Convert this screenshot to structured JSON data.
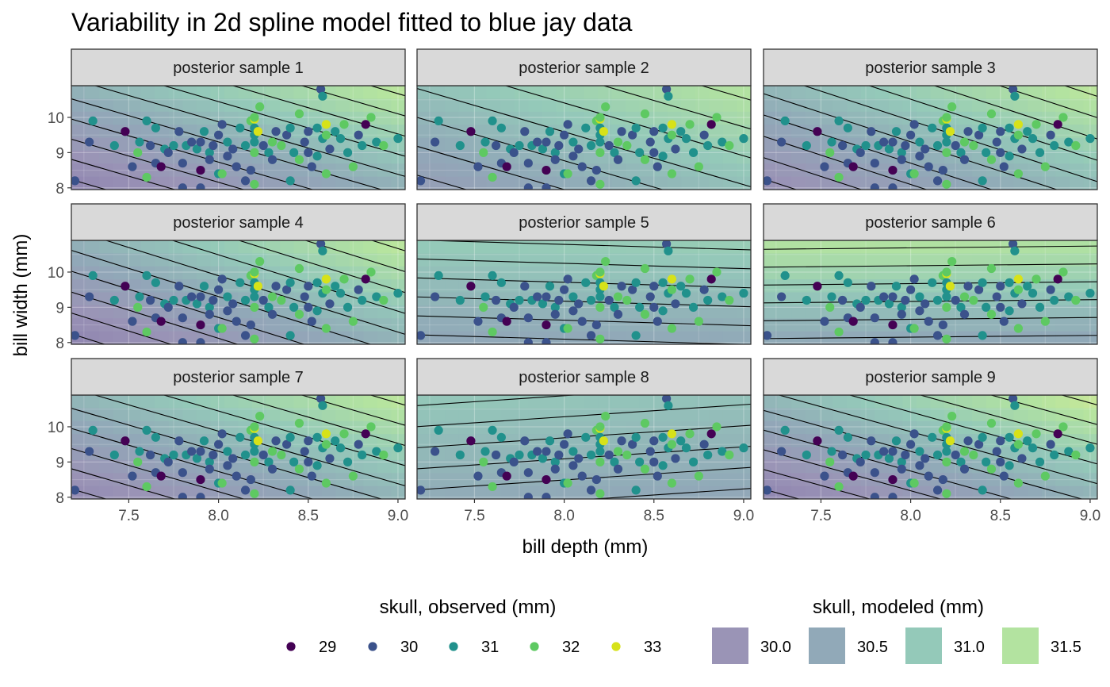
{
  "chart_data": {
    "type": "scatter",
    "title": "Variability in 2d spline model fitted to blue jay data",
    "xlabel": "bill depth (mm)",
    "ylabel": "bill width (mm)",
    "xlim": [
      7.18,
      9.04
    ],
    "ylim": [
      7.95,
      10.9
    ],
    "x_ticks": [
      "7.5",
      "8.0",
      "8.5",
      "9.0"
    ],
    "y_ticks": [
      "8",
      "9",
      "10"
    ],
    "facets": [
      "posterior sample 1",
      "posterior sample 2",
      "posterior sample 3",
      "posterior sample 4",
      "posterior sample 5",
      "posterior sample 6",
      "posterior sample 7",
      "posterior sample 8",
      "posterior sample 9"
    ],
    "facet_surfaces": [
      {
        "b": 0.82,
        "c": 0.55,
        "cmin": 29.9,
        "cmax": 31.7
      },
      {
        "b": 0.45,
        "c": 0.3,
        "cmin": 30.4,
        "cmax": 31.6
      },
      {
        "b": 0.75,
        "c": 0.45,
        "cmin": 30.1,
        "cmax": 31.7
      },
      {
        "b": 0.8,
        "c": 0.5,
        "cmin": 29.9,
        "cmax": 31.7
      },
      {
        "b": 0.06,
        "c": 0.4,
        "cmin": 30.6,
        "cmax": 31.2
      },
      {
        "b": -0.03,
        "c": 0.6,
        "cmin": 30.6,
        "cmax": 31.6
      },
      {
        "b": 0.82,
        "c": 0.55,
        "cmin": 30.0,
        "cmax": 31.7
      },
      {
        "b": -0.12,
        "c": 0.35,
        "cmin": 30.6,
        "cmax": 31.1
      },
      {
        "b": 0.78,
        "c": 0.55,
        "cmin": 29.9,
        "cmax": 31.8
      }
    ],
    "observed_points": [
      [
        7.2,
        8.2,
        30
      ],
      [
        7.28,
        9.3,
        30
      ],
      [
        7.3,
        9.9,
        31
      ],
      [
        7.42,
        9.2,
        31
      ],
      [
        7.48,
        9.6,
        29
      ],
      [
        7.52,
        8.6,
        30
      ],
      [
        7.55,
        9.0,
        32
      ],
      [
        7.56,
        9.3,
        31
      ],
      [
        7.6,
        8.3,
        32
      ],
      [
        7.6,
        9.9,
        31
      ],
      [
        7.62,
        9.2,
        30
      ],
      [
        7.65,
        8.7,
        30
      ],
      [
        7.65,
        9.7,
        31
      ],
      [
        7.68,
        8.6,
        29
      ],
      [
        7.7,
        9.1,
        31
      ],
      [
        7.72,
        9.0,
        30
      ],
      [
        7.75,
        9.2,
        31
      ],
      [
        7.78,
        9.6,
        30
      ],
      [
        7.8,
        8.7,
        30
      ],
      [
        7.8,
        8.0,
        30
      ],
      [
        7.82,
        9.2,
        31
      ],
      [
        7.85,
        9.3,
        30
      ],
      [
        7.88,
        9.1,
        31
      ],
      [
        7.9,
        8.5,
        29
      ],
      [
        7.9,
        8.0,
        30
      ],
      [
        7.9,
        9.3,
        30
      ],
      [
        7.92,
        9.6,
        31
      ],
      [
        7.95,
        9.0,
        31
      ],
      [
        7.95,
        8.8,
        30
      ],
      [
        7.97,
        9.2,
        30
      ],
      [
        8.0,
        8.4,
        31
      ],
      [
        8.0,
        9.5,
        30
      ],
      [
        8.02,
        8.4,
        32
      ],
      [
        8.02,
        9.8,
        30
      ],
      [
        8.05,
        8.9,
        30
      ],
      [
        8.05,
        9.3,
        31
      ],
      [
        8.08,
        9.1,
        30
      ],
      [
        8.1,
        8.6,
        30
      ],
      [
        8.12,
        9.7,
        31
      ],
      [
        8.15,
        9.2,
        31
      ],
      [
        8.15,
        8.2,
        30
      ],
      [
        8.18,
        8.5,
        30
      ],
      [
        8.18,
        9.9,
        32
      ],
      [
        8.2,
        9.0,
        32
      ],
      [
        8.2,
        9.5,
        31
      ],
      [
        8.2,
        9.95,
        33
      ],
      [
        8.2,
        10.0,
        32
      ],
      [
        8.2,
        9.7,
        31
      ],
      [
        8.2,
        9.3,
        31
      ],
      [
        8.2,
        8.1,
        32
      ],
      [
        8.22,
        9.6,
        33
      ],
      [
        8.23,
        10.3,
        32
      ],
      [
        8.25,
        9.2,
        30
      ],
      [
        8.28,
        9.0,
        31
      ],
      [
        8.3,
        9.3,
        32
      ],
      [
        8.3,
        8.8,
        30
      ],
      [
        8.32,
        9.6,
        30
      ],
      [
        8.35,
        9.2,
        32
      ],
      [
        8.38,
        9.5,
        30
      ],
      [
        8.4,
        8.2,
        31
      ],
      [
        8.4,
        9.7,
        31
      ],
      [
        8.42,
        9.0,
        31
      ],
      [
        8.45,
        8.8,
        32
      ],
      [
        8.45,
        10.1,
        32
      ],
      [
        8.48,
        9.3,
        30
      ],
      [
        8.5,
        9.6,
        30
      ],
      [
        8.5,
        9.0,
        30
      ],
      [
        8.52,
        8.6,
        30
      ],
      [
        8.55,
        9.7,
        31
      ],
      [
        8.55,
        8.9,
        31
      ],
      [
        8.57,
        10.8,
        30
      ],
      [
        8.58,
        10.6,
        31
      ],
      [
        8.58,
        9.4,
        31
      ],
      [
        8.6,
        9.8,
        33
      ],
      [
        8.6,
        9.5,
        32
      ],
      [
        8.6,
        8.4,
        32
      ],
      [
        8.62,
        9.1,
        30
      ],
      [
        8.65,
        9.6,
        31
      ],
      [
        8.68,
        9.4,
        31
      ],
      [
        8.7,
        9.8,
        32
      ],
      [
        8.72,
        9.0,
        31
      ],
      [
        8.75,
        8.6,
        32
      ],
      [
        8.78,
        9.5,
        30
      ],
      [
        8.8,
        9.2,
        31
      ],
      [
        8.82,
        9.8,
        29
      ],
      [
        8.85,
        10.0,
        32
      ],
      [
        8.88,
        9.3,
        31
      ],
      [
        8.92,
        9.2,
        32
      ],
      [
        9.0,
        9.4,
        31
      ]
    ],
    "legend_observed": {
      "title": "skull, observed (mm)",
      "entries": [
        {
          "label": "29",
          "value": 29,
          "color": "#440154"
        },
        {
          "label": "30",
          "value": 30,
          "color": "#3b528b"
        },
        {
          "label": "31",
          "value": 31,
          "color": "#21918c"
        },
        {
          "label": "32",
          "value": 32,
          "color": "#5ec962"
        },
        {
          "label": "33",
          "value": 33,
          "color": "#d7e219"
        }
      ]
    },
    "legend_modeled": {
      "title": "skull, modeled (mm)",
      "entries": [
        {
          "label": "30.0",
          "value": 30.0,
          "color": "#9a94b6"
        },
        {
          "label": "30.5",
          "value": 30.5,
          "color": "#91a9b8"
        },
        {
          "label": "31.0",
          "value": 31.0,
          "color": "#94c9b9"
        },
        {
          "label": "31.5",
          "value": 31.5,
          "color": "#b3e3a0"
        }
      ]
    }
  }
}
